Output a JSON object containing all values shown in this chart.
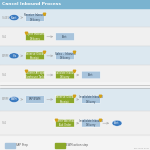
{
  "title": "Cancel Inbound Process",
  "header_bar_color": "#7ab3d0",
  "bg_color": "#f4f4f4",
  "lane_bg_even": "#dce8f0",
  "lane_bg_odd": "#f0f0f0",
  "lane_label_color": "#888888",
  "lane_labels": [
    "S/4EWM",
    "S/4",
    "EWM",
    "S/4",
    "EWM",
    "S/4"
  ],
  "box_blue": "#a8c4dc",
  "box_green": "#8ba82a",
  "box_teal": "#3a7abf",
  "arrow_color": "#aaaaaa",
  "sep_color": "#bbbbbb",
  "legend_text_blue": "SAP Step",
  "legend_text_green": "EWM action step",
  "watermark": "By: Dan Ellis",
  "flag_color": "#d4a017"
}
